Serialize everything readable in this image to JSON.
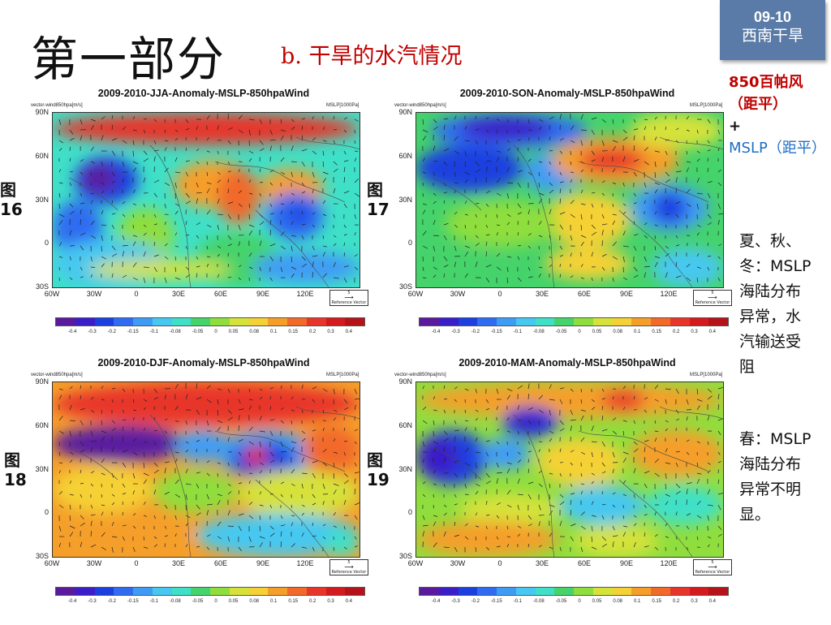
{
  "header": {
    "title": "第一部分",
    "subtitle": "b. 干旱的水汽情况"
  },
  "badge": {
    "line1": "09-10",
    "line2": "西南干旱"
  },
  "legend_note": {
    "part1": "850百帕风（距平）",
    "plus": "+",
    "part2": "MSLP（距平）"
  },
  "notes": {
    "summer_autumn_winter": "夏、秋、冬：MSLP海陆分布异常，水汽输送受阻",
    "spring": "春：MSLP海陆分布异常不明显。"
  },
  "panels": [
    {
      "fig_label": "图",
      "fig_num": "16",
      "title": "2009-2010-JJA-Anomaly-MSLP-850hpaWind",
      "variant": "jja"
    },
    {
      "fig_label": "图",
      "fig_num": "17",
      "title": "2009-2010-SON-Anomaly-MSLP-850hpaWind",
      "variant": "son"
    },
    {
      "fig_label": "图",
      "fig_num": "18",
      "title": "2009-2010-DJF-Anomaly-MSLP-850hpaWind",
      "variant": "djf"
    },
    {
      "fig_label": "图",
      "fig_num": "19",
      "title": "2009-2010-MAM-Anomaly-MSLP-850hpaWind",
      "variant": "mam"
    }
  ],
  "map_labels": {
    "left_small": "vector-wind850hpa[m/s]",
    "right_small": "MSLP[1000Pa]",
    "y": [
      "90N",
      "60N",
      "30N",
      "0",
      "30S"
    ],
    "x": [
      "60W",
      "30W",
      "0",
      "30E",
      "60E",
      "90E",
      "120E"
    ],
    "ref_value": "5",
    "ref_text": "Reference Vector"
  },
  "colorbar": {
    "ticks": [
      "-0.4",
      "-0.3",
      "-0.2",
      "-0.15",
      "-0.1",
      "-0.08",
      "-0.05",
      "0",
      "0.05",
      "0.08",
      "0.1",
      "0.15",
      "0.2",
      "0.3",
      "0.4"
    ],
    "colors": [
      "#5b1a9e",
      "#3a1fc9",
      "#1c3fe0",
      "#2f6cf2",
      "#3f9cf5",
      "#46c8f0",
      "#3fe0c8",
      "#45d36b",
      "#8fde3e",
      "#d6e23a",
      "#f5d135",
      "#f59f2a",
      "#f2692a",
      "#e8352a",
      "#d41a1f",
      "#b5121a"
    ]
  }
}
